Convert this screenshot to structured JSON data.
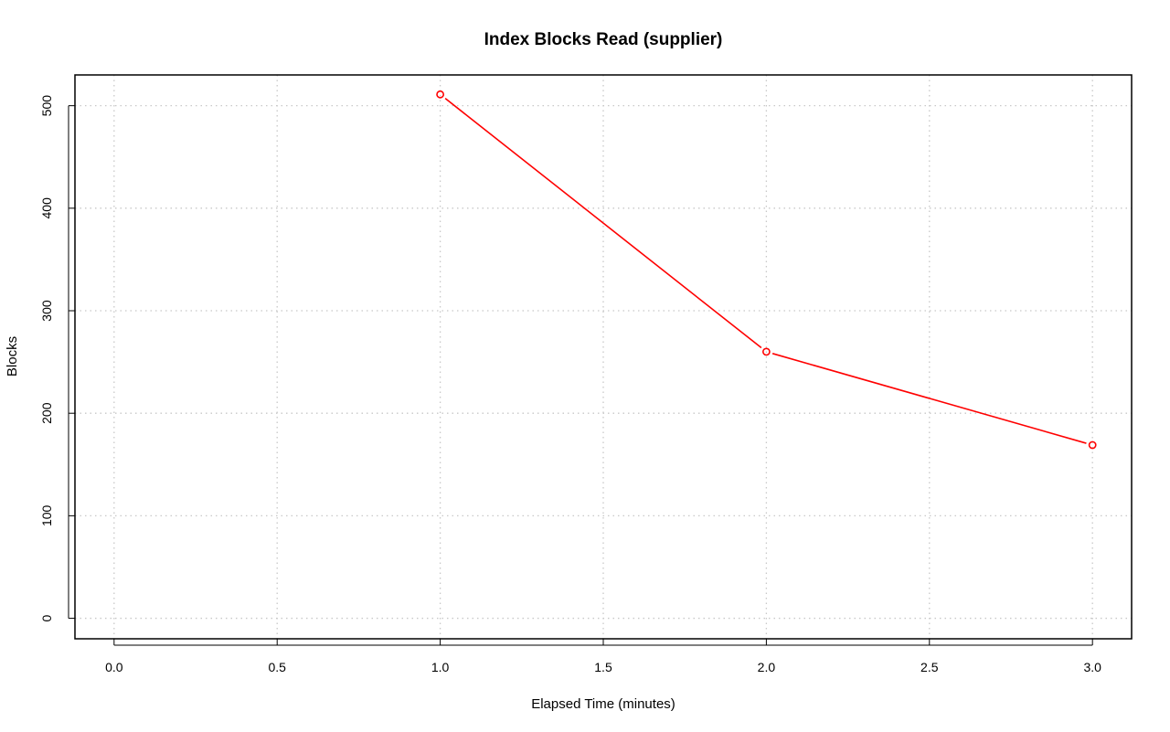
{
  "chart_data": {
    "type": "line",
    "title": "Index Blocks Read (supplier)",
    "xlabel": "Elapsed Time (minutes)",
    "ylabel": "Blocks",
    "xlim": [
      -0.12,
      3.12
    ],
    "ylim": [
      -20,
      530
    ],
    "x_ticks": [
      "0.0",
      "0.5",
      "1.0",
      "1.5",
      "2.0",
      "2.5",
      "3.0"
    ],
    "y_ticks": [
      "0",
      "100",
      "200",
      "300",
      "400",
      "500"
    ],
    "grid": true,
    "series": [
      {
        "color": "#ff0000",
        "marker": "open-circle",
        "x": [
          1.0,
          2.0,
          3.0
        ],
        "y": [
          511,
          260,
          169
        ]
      }
    ]
  }
}
